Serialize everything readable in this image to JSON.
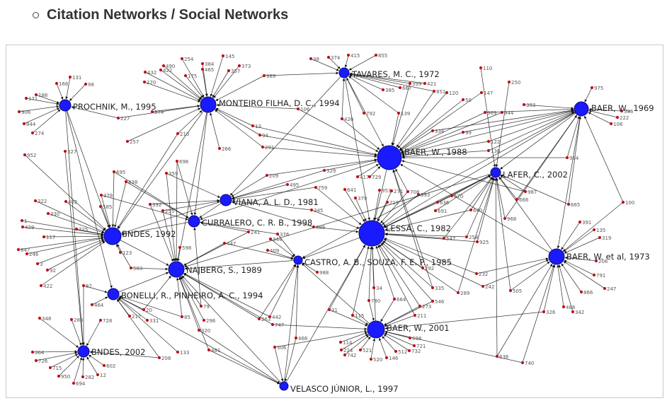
{
  "heading": {
    "text": "Citation Networks / Social Networks"
  },
  "colors": {
    "hub": "#1a1aff",
    "hub_stroke": "#0a0a7a",
    "leaf": "#c0111c",
    "edge": "#1a1a1a",
    "label": "#222222",
    "small_label": "#555555",
    "frame": "#c8c8c8"
  },
  "diagram": {
    "hub_labels": {
      "tavares": "TAVARES, M. C., 1972",
      "prochnik": "PROCHNIK, M., 1995",
      "monteiro": "MONTEIRO FILHA, D. C., 1994",
      "baer1969": "BAER, W., 1969",
      "baer1988": "BAER, W., 1988",
      "lafer": "LAFER, C., 2002",
      "viana": "VIANA, A. L. D., 1981",
      "curralero": "CURRALERO, C. R. B., 1998",
      "lessa": "LESSA, C., 1982",
      "bndes1992": "BNDES, 1992",
      "castro": "CASTRO, A. B., SOUZA, F. E. P., 1985",
      "baer1973": "BAER, W. et al, 1973",
      "najberg": "NAJBERG, S., 1989",
      "bonelli": "BONELLI, R., PINHEIRO, A. C., 1994",
      "baer2001": "BAER, W., 2001",
      "bndes2002": "BNDES, 2002",
      "velasco": "VELASCO JÚNIOR, L., 1997"
    },
    "leaf_labels": {
      "l131": "131",
      "l166": "166",
      "l98": "98",
      "l171": "171",
      "l188": "188",
      "l906": "906",
      "l844": "844",
      "l274": "274",
      "l227": "227",
      "l257": "257",
      "l952": "952",
      "l327": "327",
      "l254": "254",
      "l490": "490",
      "l432": "432",
      "l422": "422",
      "l270": "270",
      "l175": "175",
      "l384": "384",
      "l465": "465",
      "l145": "145",
      "l373": "373",
      "l357": "357",
      "l989": "989",
      "l374": "374",
      "l574": "574",
      "l210": "210",
      "l266": "266",
      "l106": "106",
      "l13": "13",
      "l94": "94",
      "l291": "291",
      "l38": "38",
      "l374b": "374",
      "l415": "415",
      "l855": "855",
      "l385": "385",
      "l667": "667",
      "l399": "399",
      "l421": "421",
      "l851": "851",
      "l120": "120",
      "l792": "792",
      "l139": "139",
      "l426": "426",
      "l334": "334",
      "l110": "110",
      "l250": "250",
      "l147": "147",
      "l50": "50",
      "l969": "969",
      "l944": "944",
      "l393": "393",
      "l975": "975",
      "l386": "386",
      "l222": "222",
      "l108": "108",
      "l99": "99",
      "l122": "122",
      "l138": "138",
      "l964": "964",
      "l987": "987",
      "l666": "666",
      "l665": "665",
      "l100": "100",
      "l968": "968",
      "l391": "391",
      "l135": "135",
      "l319": "319",
      "l206": "206",
      "l791": "791",
      "l247": "247",
      "l866": "866",
      "l488": "488",
      "l342": "342",
      "l326": "326",
      "l505": "505",
      "l740": "740",
      "l636": "636",
      "l242": "242",
      "l232": "232",
      "l289": "289",
      "l335": "335",
      "l546": "546",
      "l273": "273",
      "l211": "211",
      "l698": "698",
      "l721": "721",
      "l732": "732",
      "l512": "512",
      "l146": "146",
      "l520": "520",
      "l521": "521",
      "l742": "742",
      "l224": "224",
      "l114": "114",
      "l31": "31",
      "l115": "115",
      "l780": "780",
      "l664": "664",
      "l34": "34",
      "l292": "292",
      "l306": "306",
      "l466": "466",
      "l442": "442",
      "l747": "747",
      "l263": "263",
      "l481": "481",
      "l296": "296",
      "l320": "320",
      "l85": "85",
      "l79": "79",
      "l331": "331",
      "l20": "20",
      "l133": "133",
      "l208": "208",
      "l217": "217",
      "l728": "728",
      "l283": "283",
      "l464": "464",
      "l82": "82",
      "l348": "348",
      "l422b": "422",
      "l92": "92",
      "l3": "3",
      "l246": "246",
      "l847": "847",
      "l429": "429",
      "l1": "1",
      "l322": "322",
      "l330": "330",
      "l402": "402",
      "l378": "378",
      "l725": "725",
      "l117": "117",
      "l585": "585",
      "l695": "695",
      "l438": "438",
      "l359": "359",
      "l696": "696",
      "l332": "332",
      "l255": "255",
      "l123": "123",
      "l598": "598",
      "l447": "447",
      "l241": "241",
      "l376": "376",
      "l344": "344",
      "l686": "686",
      "l345": "345",
      "l209": "209",
      "l495": "495",
      "l329": "329",
      "l759": "759",
      "l641": "641",
      "l379": "379",
      "l417": "417",
      "l729": "729",
      "l953": "953",
      "l271": "271",
      "l219": "219",
      "l708": "708",
      "l593": "593",
      "l670": "670",
      "l636b": "636",
      "l691": "691",
      "l640": "640",
      "l258": "258",
      "l547": "547",
      "l925": "925",
      "l988": "988",
      "l409": "409",
      "l364": "364",
      "l726": "726",
      "l715": "715",
      "l950": "950",
      "l694": "694",
      "l282": "282",
      "l12": "12",
      "l602": "602",
      "l583": "583"
    }
  }
}
